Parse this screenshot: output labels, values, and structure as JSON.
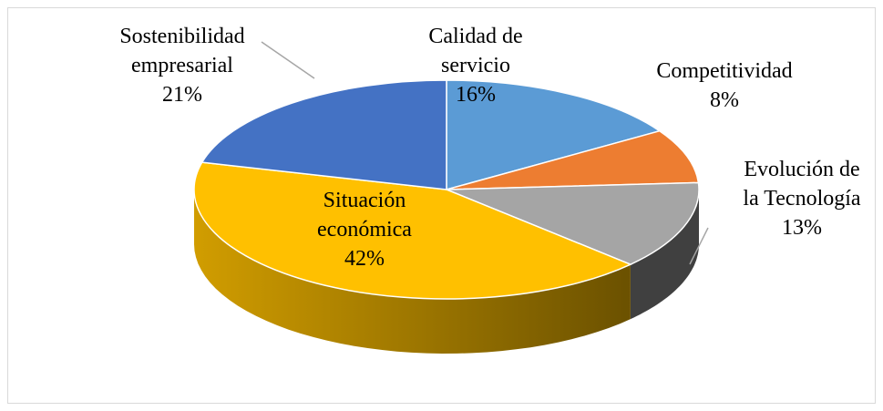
{
  "chart_data": {
    "type": "pie3d",
    "categories": [
      "Calidad de servicio",
      "Competitividad",
      "Evolución de la Tecnología",
      "Situación económica",
      "Sostenibilidad empresarial"
    ],
    "values": [
      16,
      8,
      13,
      42,
      21
    ],
    "value_labels": [
      "16%",
      "8%",
      "13%",
      "42%",
      "21%"
    ],
    "colors": [
      "#5b9bd5",
      "#ed7d31",
      "#a5a5a5",
      "#ffc000",
      "#4472c4"
    ]
  }
}
